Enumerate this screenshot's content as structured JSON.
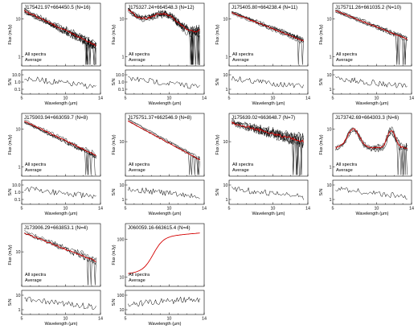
{
  "chart_data": {
    "type": "line",
    "common": {
      "flux_ylabel": "Flux (mJy)",
      "sn_ylabel": "S/N",
      "xlabel": "Wavelength (μm)",
      "legend": [
        "All spectra",
        "Average"
      ],
      "xlim": [
        5,
        14
      ],
      "xticks": [
        "5",
        "10",
        "14"
      ],
      "colors": {
        "spectra": "#000000",
        "average": "#d40000"
      },
      "flux_scale": "log",
      "sn_scale": "log"
    },
    "panels": [
      {
        "title": "J175421.97+664450.5 (N=16)",
        "flux_ticks": [
          "10",
          "1"
        ],
        "sn_ticks": [
          "10.0",
          "1.0",
          "0.1"
        ]
      },
      {
        "title": "J175327.24+664548.3 (N=12)",
        "flux_ticks": [
          "10",
          "1"
        ],
        "sn_ticks": [
          "10.0",
          "1.0",
          "0.1"
        ]
      },
      {
        "title": "J175405.80+664238.4 (N=11)",
        "flux_ticks": [
          "10",
          "1"
        ],
        "sn_ticks": [
          "10",
          "1"
        ]
      },
      {
        "title": "J175711.26+661035.2 (N=10)",
        "flux_ticks": [
          "10",
          "1"
        ],
        "sn_ticks": [
          "10",
          "1"
        ]
      },
      {
        "title": "J175903.94+663059.7 (N=8)",
        "flux_ticks": [
          "10",
          "1"
        ],
        "sn_ticks": [
          "10.0",
          "1.0",
          "0.1"
        ]
      },
      {
        "title": "J175751.37+662546.9 (N=8)",
        "flux_ticks": [
          "10"
        ],
        "sn_ticks": [
          "10",
          "1"
        ]
      },
      {
        "title": "J175639.02+663648.7 (N=7)",
        "flux_ticks": [
          "10"
        ],
        "sn_ticks": [
          "10",
          "1"
        ]
      },
      {
        "title": "J173742.69+664303.3 (N=6)",
        "flux_ticks": [
          "10",
          "1"
        ],
        "sn_ticks": [
          "10",
          "1"
        ]
      },
      {
        "title": "J173906.29+663853.1 (N=4)",
        "flux_ticks": [
          "10"
        ],
        "sn_ticks": [
          "10",
          "1"
        ]
      },
      {
        "title": "J060059.16-663615.4 (N=4)",
        "flux_ticks": [
          "100",
          "10"
        ],
        "sn_ticks": [
          "100",
          "10"
        ]
      }
    ]
  }
}
